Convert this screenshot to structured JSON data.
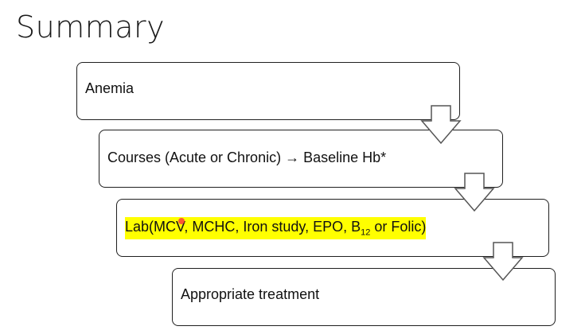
{
  "slide": {
    "title": "Summary"
  },
  "flow": {
    "step1": "Anemia",
    "step2": "Courses (Acute or Chronic) → Baseline Hb*",
    "step3_prefix": "Lab(MCV, MCHC, Iron study, EPO, B",
    "step3_sub": "12",
    "step3_suffix": " or Folic)",
    "step4": "Appropriate treatment"
  },
  "colors": {
    "highlight": "#ffff00",
    "pointer": "#ff3b3b"
  }
}
